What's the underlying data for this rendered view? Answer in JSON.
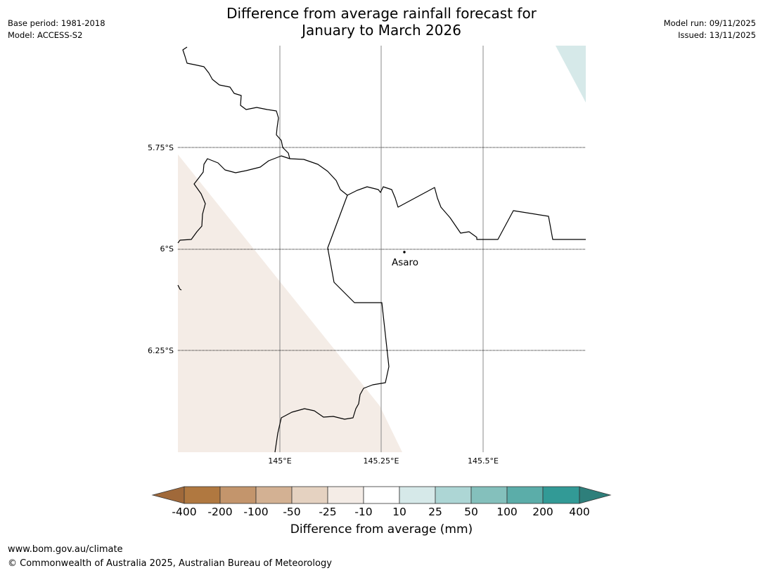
{
  "header": {
    "title_line1": "Difference from average rainfall forecast for",
    "title_line2": "January to March 2026",
    "base_period": "Base period: 1981-2018",
    "model": "Model: ACCESS-S2",
    "model_run": "Model run: 09/11/2025",
    "issued": "Issued: 13/11/2025"
  },
  "map": {
    "lat_labels": [
      "5.75°S",
      "6°S",
      "6.25°S"
    ],
    "lon_labels": [
      "145°E",
      "145.25°E",
      "145.5°E"
    ],
    "place": {
      "name": "Asaro"
    },
    "colors": {
      "dry_fill": "#f4ece6",
      "wet_fill": "#d6e9e9",
      "coast": "#000000",
      "meridian": "#888888"
    }
  },
  "legend": {
    "title": "Difference from average (mm)",
    "tick_labels": [
      "-400",
      "-200",
      "-100",
      "-50",
      "-25",
      "-10",
      "10",
      "25",
      "50",
      "100",
      "200",
      "400"
    ],
    "colors": [
      "#a0693a",
      "#b07840",
      "#c3956c",
      "#d3b193",
      "#e5d2c1",
      "#f4ece6",
      "#ffffff",
      "#d6e9e9",
      "#add6d5",
      "#84c0bc",
      "#5bada9",
      "#329a96",
      "#2e7f7b"
    ]
  },
  "footer": {
    "url": "www.bom.gov.au/climate",
    "copyright": "© Commonwealth of Australia 2025, Australian Bureau of Meteorology"
  }
}
